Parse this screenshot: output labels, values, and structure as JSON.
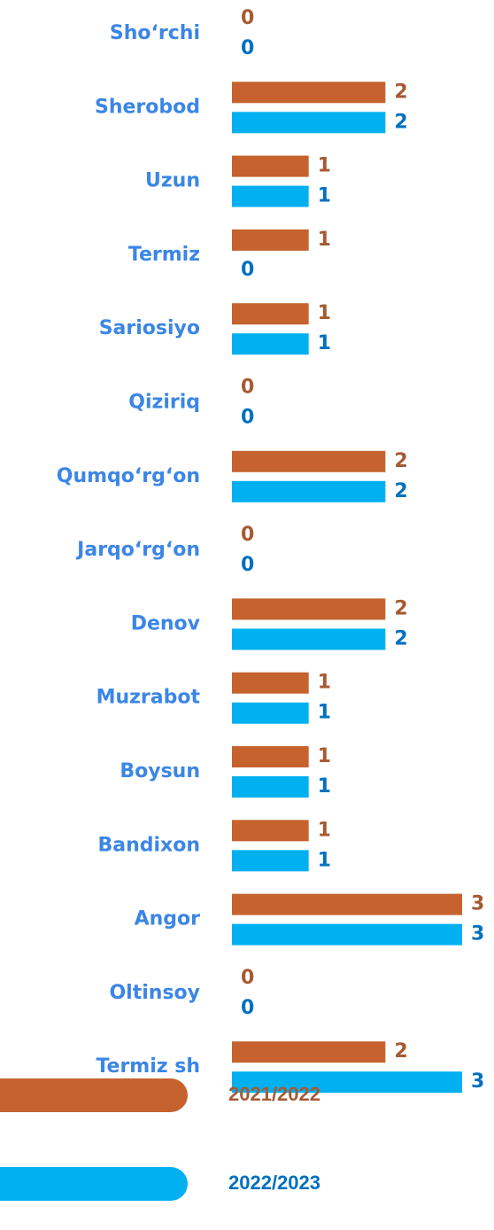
{
  "chart_data": {
    "type": "bar",
    "orientation": "horizontal",
    "categories": [
      "Sho‘rchi",
      "Sherobod",
      "Uzun",
      "Termiz",
      "Sariosiyo",
      "Qiziriq",
      "Qumqo‘rg‘on",
      "Jarqo‘rg‘on",
      "Denov",
      "Muzrabot",
      "Boysun",
      "Bandixon",
      "Angor",
      "Oltinsoy",
      "Termiz sh"
    ],
    "series": [
      {
        "name": "2021/2022",
        "color": "#c5622e",
        "label_color": "#a65a32",
        "values": [
          0,
          2,
          1,
          1,
          1,
          0,
          2,
          0,
          2,
          1,
          1,
          1,
          3,
          0,
          2
        ]
      },
      {
        "name": "2022/2023",
        "color": "#00b0f0",
        "label_color": "#0070c0",
        "values": [
          0,
          2,
          1,
          0,
          1,
          0,
          2,
          0,
          2,
          1,
          1,
          1,
          3,
          0,
          3
        ]
      }
    ],
    "xlim": [
      0,
      3
    ],
    "category_color": "#3b86e6"
  }
}
